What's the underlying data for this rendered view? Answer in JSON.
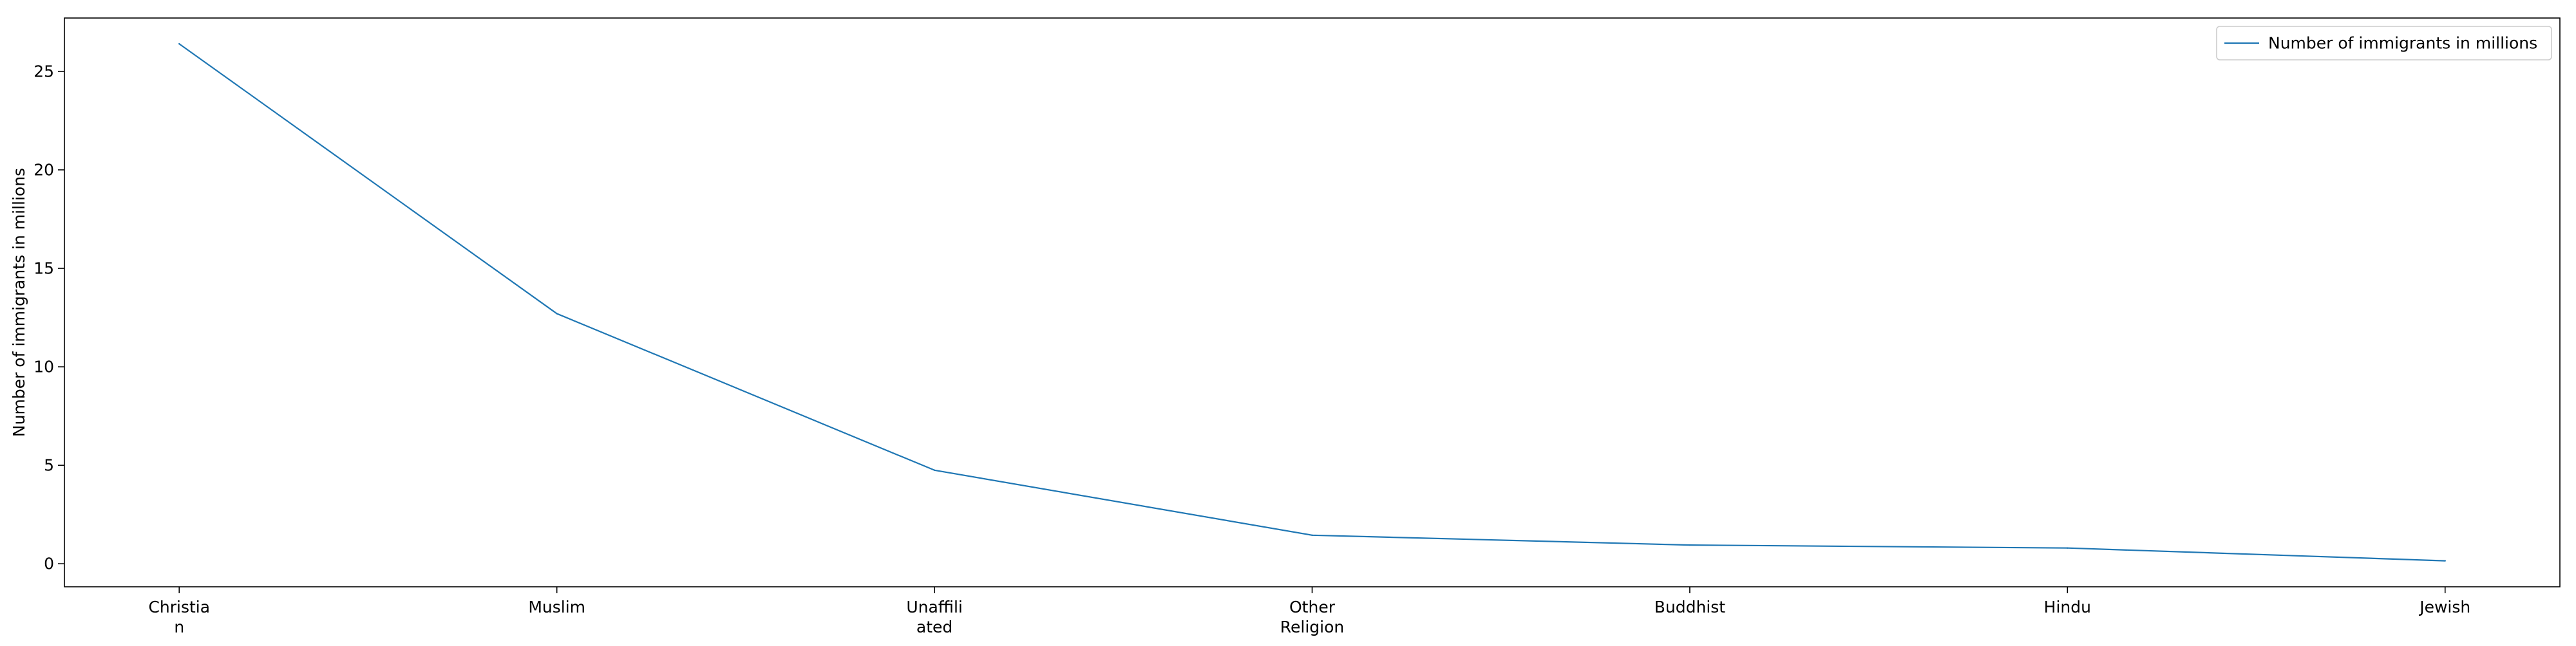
{
  "chart_data": {
    "type": "line",
    "categories": [
      "Christian",
      "Muslim",
      "Unaffiliated",
      "Other Religion",
      "Buddhist",
      "Hindu",
      "Jewish"
    ],
    "category_tick_labels": [
      [
        "Christia",
        "n"
      ],
      [
        "Muslim"
      ],
      [
        "Unaffili",
        "ated"
      ],
      [
        "Other",
        "Religion"
      ],
      [
        "Buddhist"
      ],
      [
        "Hindu"
      ],
      [
        "Jewish"
      ]
    ],
    "series": [
      {
        "name": "Number of immigrants in millions",
        "values": [
          26.4,
          12.7,
          4.75,
          1.45,
          0.95,
          0.8,
          0.15
        ],
        "color": "#1f77b4"
      }
    ],
    "title": "",
    "xlabel": "",
    "ylabel": "Number of immigrants in millions",
    "ylim": [
      -1.17,
      27.71
    ],
    "yticks": [
      0,
      5,
      10,
      15,
      20,
      25
    ],
    "ytick_labels": [
      "0",
      "5",
      "10",
      "15",
      "20",
      "25"
    ],
    "grid": false,
    "legend": "top-right"
  }
}
